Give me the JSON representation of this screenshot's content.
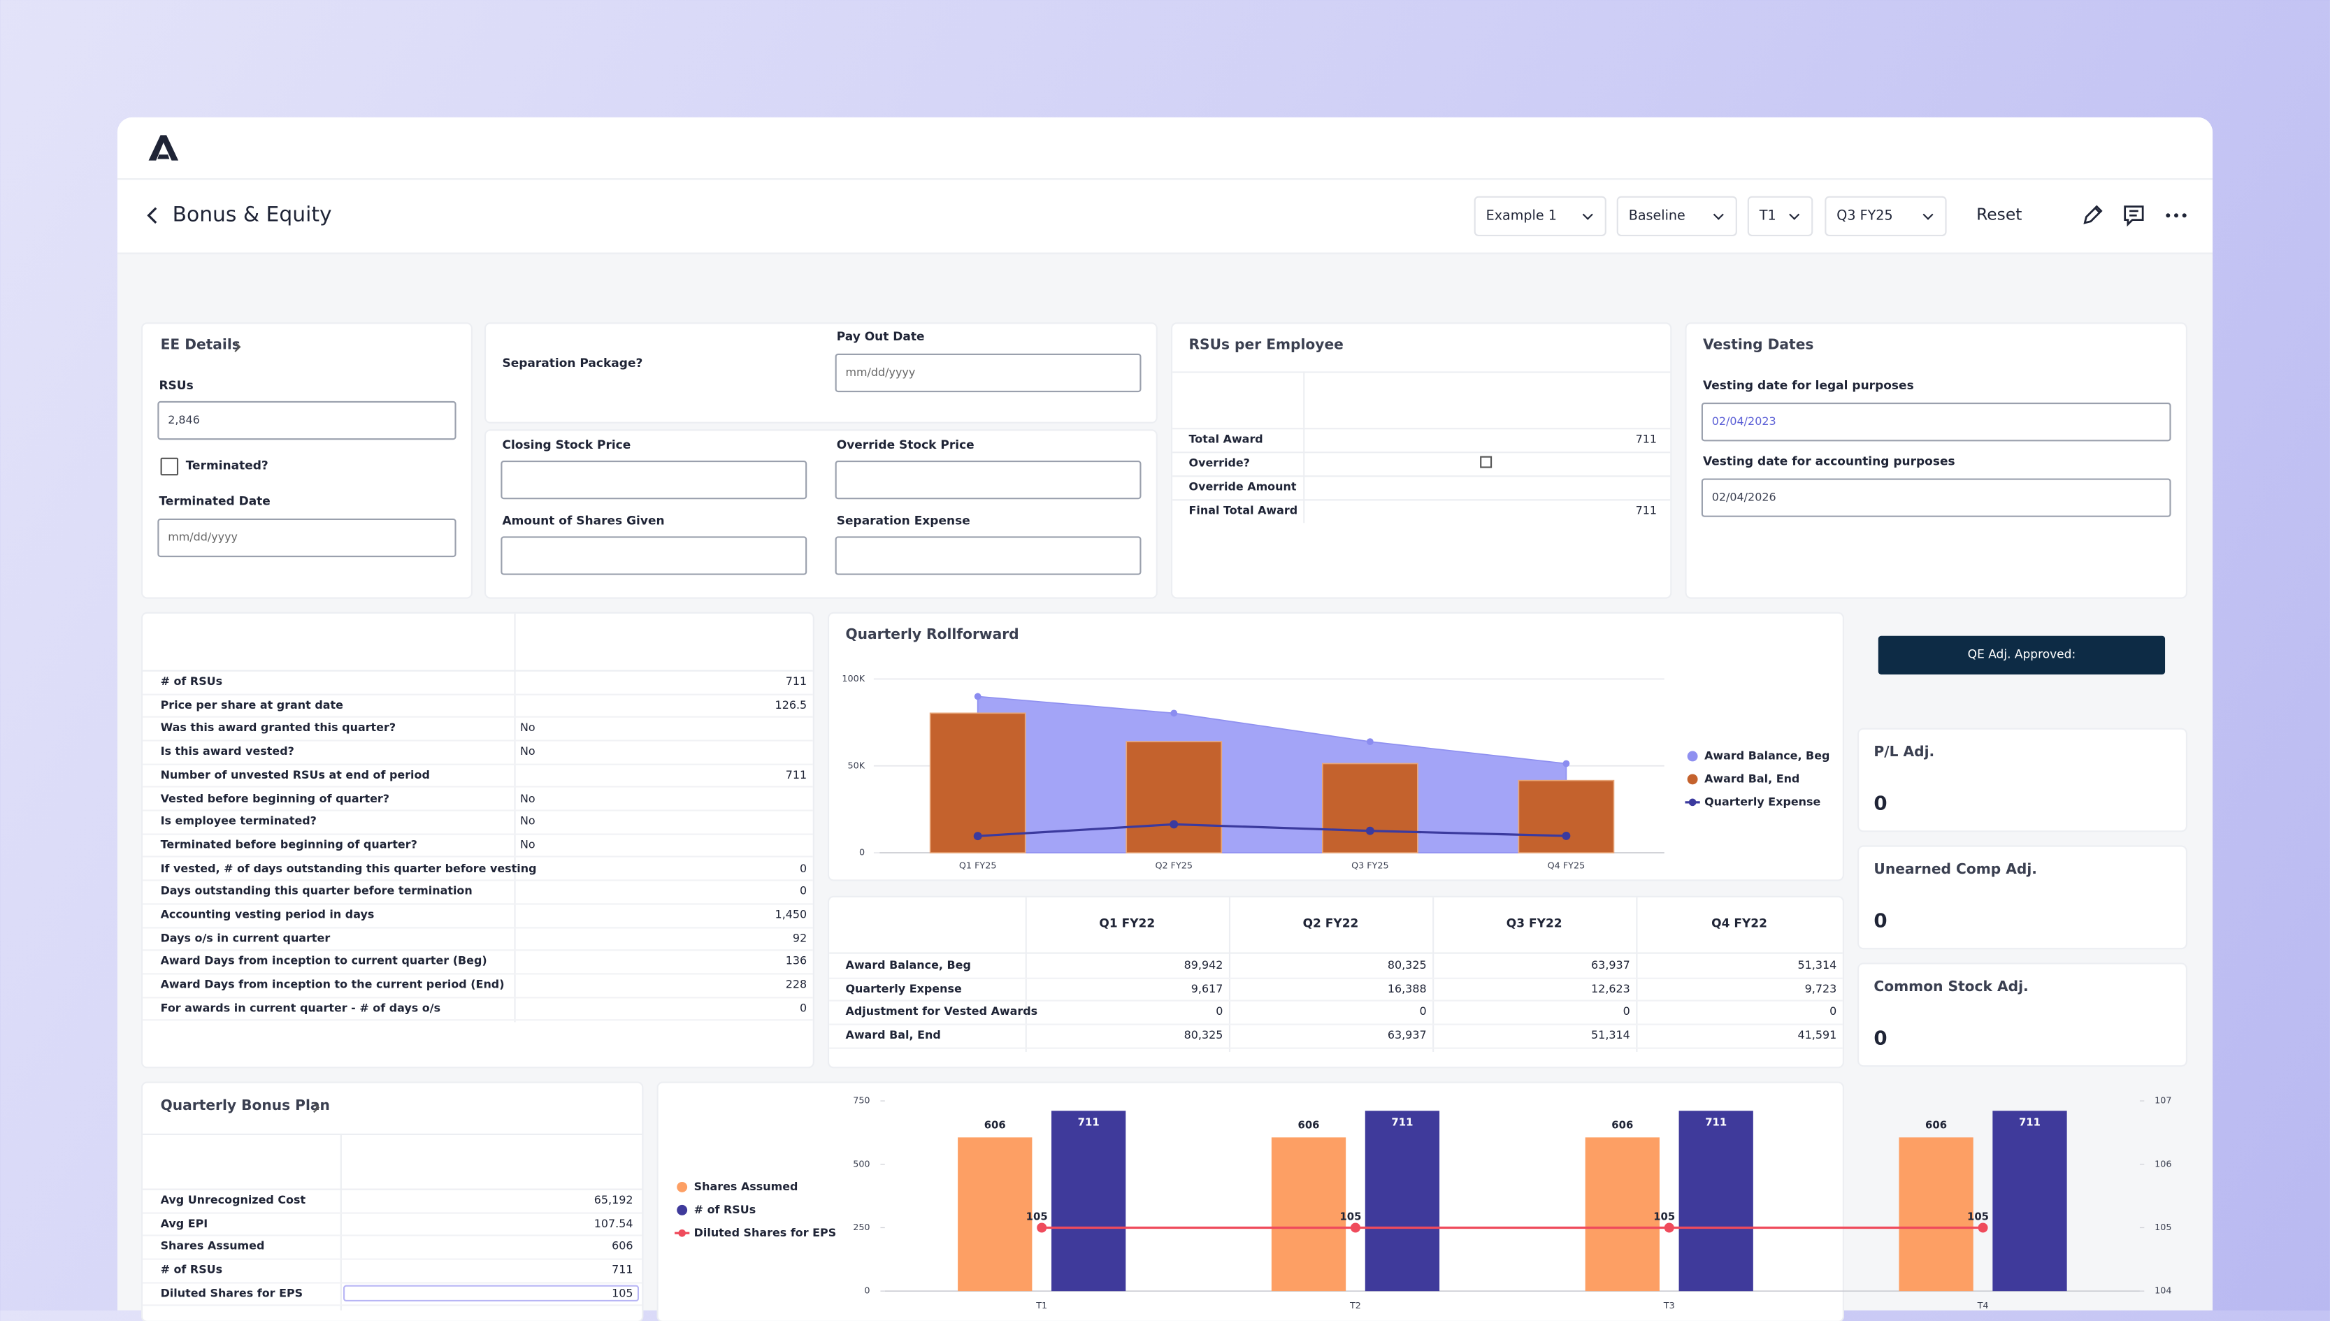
{
  "header": {
    "title": "Bonus & Equity",
    "filters": [
      "Example 1",
      "Baseline",
      "T1",
      "Q3 FY25"
    ],
    "reset": "Reset"
  },
  "ee_details": {
    "title": "EE Details",
    "rsus_label": "RSUs",
    "rsus_value": "2,846",
    "terminated_label": "Terminated?",
    "terminated_date_label": "Terminated Date",
    "terminated_date_placeholder": "mm/dd/yyyy"
  },
  "separation": {
    "package_label": "Separation Package?",
    "pay_out_label": "Pay Out Date",
    "pay_out_placeholder": "mm/dd/yyyy"
  },
  "stock_fields": [
    "Closing Stock Price",
    "Override Stock Price",
    "Amount of Shares Given",
    "Separation Expense"
  ],
  "rsus_per_employee": {
    "title": "RSUs per Employee",
    "rows": [
      {
        "label": "Total Award",
        "value": "711"
      },
      {
        "label": "Override?"
      },
      {
        "label": "Override Amount"
      },
      {
        "label": "Final Total Award",
        "value": "711"
      }
    ]
  },
  "vesting": {
    "title": "Vesting Dates",
    "fields": [
      {
        "label": "Vesting date for legal purposes",
        "value": "02/04/2023"
      },
      {
        "label": "Vesting date for accounting purposes",
        "value": "02/04/2026"
      }
    ]
  },
  "award_details": {
    "rows": [
      [
        "# of RSUs",
        "711"
      ],
      [
        "Price per share at grant date",
        "126.5"
      ],
      [
        "Was this award granted this quarter?",
        "No"
      ],
      [
        "Is this award vested?",
        "No"
      ],
      [
        "Number of unvested RSUs at end of period",
        "711"
      ],
      [
        "Vested before beginning of quarter?",
        "No"
      ],
      [
        "Is employee terminated?",
        "No"
      ],
      [
        "Terminated before beginning of quarter?",
        "No"
      ],
      [
        "If vested, # of days outstanding this quarter before vesting",
        "0"
      ],
      [
        "Days outstanding this quarter before termination",
        "0"
      ],
      [
        "Accounting vesting period in days",
        "1,450"
      ],
      [
        "Days o/s in current quarter",
        "92"
      ],
      [
        "Award Days from inception to current quarter (Beg)",
        "136"
      ],
      [
        "Award Days from inception to the current period (End)",
        "228"
      ],
      [
        "For awards in current quarter - # of days o/s",
        "0"
      ]
    ]
  },
  "chart_data": [
    {
      "type": "combo",
      "title": "Quarterly Rollforward",
      "categories": [
        "Q1 FY25",
        "Q2 FY25",
        "Q3 FY25",
        "Q4 FY25"
      ],
      "series": [
        {
          "name": "Award Balance, Beg",
          "type": "area",
          "color": "#a3a4f7",
          "values": [
            89942,
            80325,
            63937,
            51314
          ]
        },
        {
          "name": "Award Bal, End",
          "type": "bar",
          "color": "#c4622d",
          "values": [
            80325,
            63937,
            51314,
            41591
          ]
        },
        {
          "name": "Quarterly Expense",
          "type": "line",
          "color": "#3b3a9e",
          "values": [
            9617,
            16388,
            12623,
            9723
          ]
        }
      ],
      "ylim": [
        0,
        100000
      ],
      "yticks": [
        0,
        {
          "value": 50000,
          "label": "50K"
        },
        {
          "value": 100000,
          "label": "100K"
        }
      ],
      "grid": true,
      "legend": "right"
    },
    {
      "type": "combo",
      "categories": [
        "T1",
        "T2",
        "T3",
        "T4"
      ],
      "series": [
        {
          "name": "Shares Assumed",
          "type": "bar",
          "color": "#fd9f64",
          "values": [
            606,
            606,
            606,
            606
          ]
        },
        {
          "name": "# of RSUs",
          "type": "bar",
          "color": "#3f3a9b",
          "values": [
            711,
            711,
            711,
            711
          ]
        },
        {
          "name": "Diluted Shares for EPS",
          "type": "line",
          "axis": "y2",
          "color": "#ef4b5c",
          "values": [
            105,
            105,
            105,
            105
          ]
        }
      ],
      "ylim": [
        0,
        750
      ],
      "yticks": [
        0,
        250,
        500,
        750
      ],
      "y2lim": [
        104,
        107
      ],
      "y2ticks": [
        104,
        105,
        106,
        107
      ],
      "grid": false,
      "legend": "left",
      "data_labels": true
    }
  ],
  "rollforward_table": {
    "columns": [
      "Q1 FY22",
      "Q2 FY22",
      "Q3 FY22",
      "Q4 FY22"
    ],
    "rows": [
      [
        "Award Balance, Beg",
        "89,942",
        "80,325",
        "63,937",
        "51,314"
      ],
      [
        "Quarterly Expense",
        "9,617",
        "16,388",
        "12,623",
        "9,723"
      ],
      [
        "Adjustment for Vested Awards",
        "0",
        "0",
        "0",
        "0"
      ],
      [
        "Award Bal, End",
        "80,325",
        "63,937",
        "51,314",
        "41,591"
      ]
    ]
  },
  "adjustments": {
    "approval": "QE Adj. Approved:",
    "cards": [
      {
        "title": "P/L Adj.",
        "value": "0"
      },
      {
        "title": "Unearned Comp Adj.",
        "value": "0"
      },
      {
        "title": "Common Stock Adj.",
        "value": "0"
      }
    ]
  },
  "bonus_plan": {
    "title": "Quarterly Bonus Plan",
    "rows": [
      [
        "Avg Unrecognized Cost",
        "65,192"
      ],
      [
        "Avg EPI",
        "107.54"
      ],
      [
        "Shares Assumed",
        "606"
      ],
      [
        "# of RSUs",
        "711"
      ],
      [
        "Diluted Shares for EPS",
        "105"
      ]
    ]
  }
}
